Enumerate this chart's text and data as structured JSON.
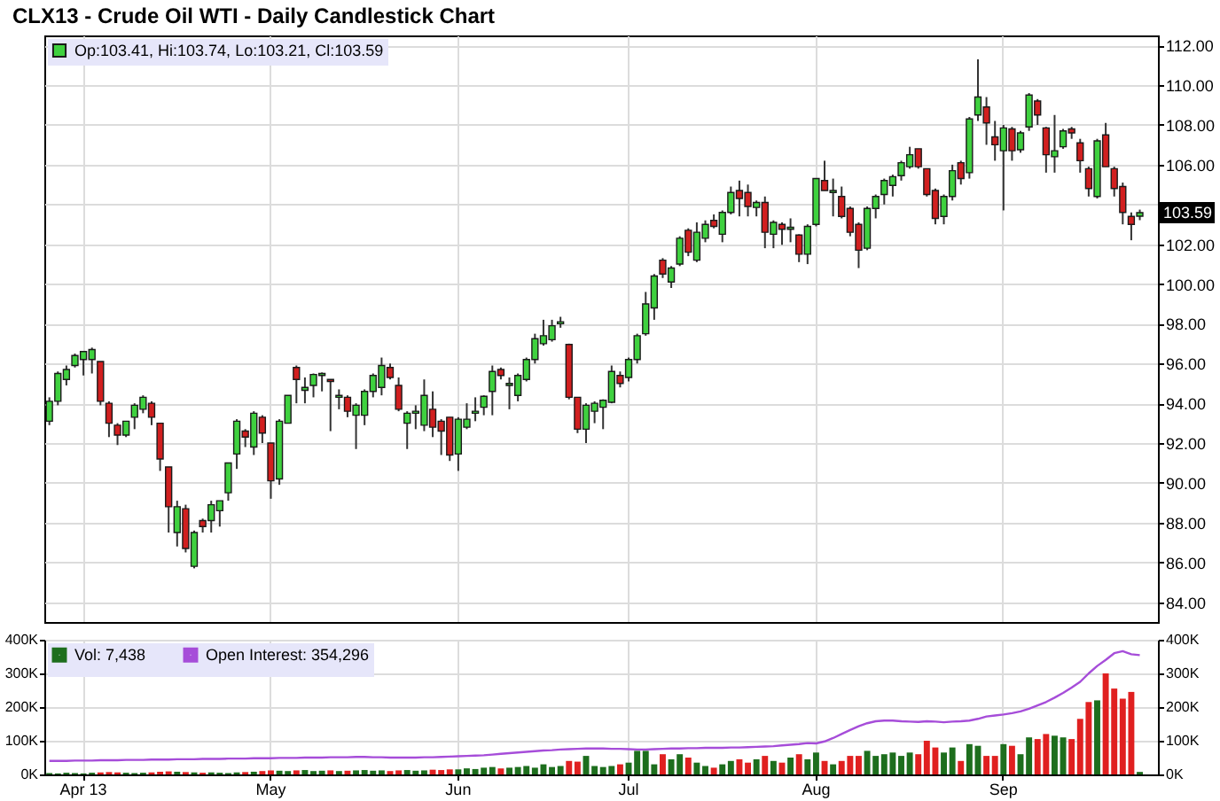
{
  "chart_data": [
    {
      "type": "candlestick",
      "title": "CLX13 - Crude Oil WTI - Daily Candlestick Chart",
      "categories": [
        null,
        null,
        null,
        null,
        null,
        null,
        null,
        null,
        null,
        null,
        null,
        null,
        null,
        null,
        null,
        null,
        null,
        null,
        null,
        null,
        null,
        null,
        null,
        null,
        null,
        null,
        null,
        null,
        null,
        null,
        null,
        null,
        null,
        null,
        null,
        null,
        null,
        null,
        null,
        null,
        null,
        null,
        null,
        null,
        null,
        null,
        null,
        null,
        null,
        null,
        null,
        null,
        null,
        null,
        null,
        null,
        null,
        null,
        null,
        null,
        null,
        null,
        null,
        null,
        null,
        null,
        null,
        null,
        null,
        null,
        null,
        null,
        null,
        null,
        null,
        null,
        null,
        null,
        null,
        null,
        null,
        null,
        null,
        null,
        null,
        null,
        null,
        null,
        null,
        null,
        null,
        null,
        null,
        null,
        null,
        null,
        null,
        null,
        null,
        null,
        null,
        null,
        null,
        null,
        null,
        null,
        null,
        null,
        null,
        null,
        null,
        null,
        null,
        null,
        null,
        null,
        null,
        null,
        null,
        null,
        null,
        null,
        null,
        null,
        null,
        null,
        null,
        null,
        null
      ],
      "series": [
        {
          "name": "Op:103.41, Hi:103.74, Lo:103.21, Cl:103.59",
          "color": "#3fd13f",
          "ohlc": [
            [
              93.1,
              94.3,
              92.9,
              94.1
            ],
            [
              94.1,
              95.6,
              93.9,
              95.5
            ],
            [
              95.2,
              95.9,
              94.9,
              95.7
            ],
            [
              95.9,
              96.5,
              95.8,
              96.4
            ],
            [
              96.2,
              96.6,
              95.4,
              96.6
            ],
            [
              96.2,
              96.8,
              95.5,
              96.7
            ],
            [
              96.1,
              96.1,
              93.9,
              94.1
            ],
            [
              94.0,
              94.1,
              92.3,
              93.0
            ],
            [
              92.9,
              93.0,
              91.9,
              92.4
            ],
            [
              92.4,
              93.1,
              92.3,
              93.1
            ],
            [
              93.3,
              94.0,
              92.7,
              93.9
            ],
            [
              93.7,
              94.4,
              93.5,
              94.3
            ],
            [
              94.0,
              94.1,
              92.9,
              93.3
            ],
            [
              93.0,
              93.0,
              90.6,
              91.2
            ],
            [
              90.8,
              90.8,
              87.5,
              88.8
            ],
            [
              87.5,
              89.1,
              86.8,
              88.8
            ],
            [
              88.7,
              88.9,
              86.5,
              86.7
            ],
            [
              85.8,
              87.6,
              85.7,
              87.5
            ],
            [
              88.1,
              88.2,
              87.5,
              87.8
            ],
            [
              88.1,
              89.1,
              87.5,
              88.9
            ],
            [
              88.6,
              89.1,
              87.8,
              89.1
            ],
            [
              89.5,
              91.0,
              89.1,
              91.0
            ],
            [
              91.45,
              93.2,
              90.7,
              93.1
            ],
            [
              92.6,
              92.7,
              91.8,
              92.3
            ],
            [
              91.8,
              93.6,
              91.4,
              93.5
            ],
            [
              93.3,
              93.4,
              92.0,
              92.5
            ],
            [
              92.0,
              92.0,
              89.2,
              90.1
            ],
            [
              90.2,
              93.2,
              89.9,
              93.1
            ],
            [
              93.0,
              94.4,
              93.0,
              94.4
            ],
            [
              95.8,
              95.9,
              94.0,
              95.2
            ],
            [
              94.65,
              95.3,
              94.0,
              94.8
            ],
            [
              94.9,
              95.5,
              94.3,
              95.45
            ],
            [
              95.4,
              95.55,
              94.6,
              95.5
            ],
            [
              95.2,
              95.2,
              92.6,
              95.1
            ],
            [
              94.3,
              94.7,
              93.7,
              94.4
            ],
            [
              94.3,
              94.4,
              93.3,
              93.6
            ],
            [
              93.4,
              94.0,
              91.7,
              93.9
            ],
            [
              93.4,
              94.7,
              92.9,
              94.6
            ],
            [
              94.6,
              95.5,
              94.3,
              95.4
            ],
            [
              94.8,
              96.3,
              94.4,
              95.9
            ],
            [
              95.8,
              96.0,
              95.2,
              95.3
            ],
            [
              94.9,
              95.3,
              93.6,
              93.7
            ],
            [
              93.0,
              93.6,
              91.7,
              93.5
            ],
            [
              93.5,
              93.9,
              92.7,
              93.6
            ],
            [
              92.9,
              95.2,
              92.6,
              94.4
            ],
            [
              93.7,
              94.6,
              92.3,
              92.8
            ],
            [
              93.1,
              93.2,
              91.4,
              92.6
            ],
            [
              93.3,
              93.3,
              91.1,
              91.4
            ],
            [
              91.45,
              93.3,
              90.6,
              93.2
            ],
            [
              92.8,
              94.0,
              92.7,
              93.2
            ],
            [
              93.5,
              94.3,
              93.1,
              93.6
            ],
            [
              93.8,
              94.4,
              93.4,
              94.35
            ],
            [
              94.6,
              95.9,
              93.4,
              95.6
            ],
            [
              95.7,
              95.8,
              95.2,
              95.4
            ],
            [
              94.9,
              95.3,
              93.7,
              95.0
            ],
            [
              94.4,
              95.5,
              94.1,
              95.4
            ],
            [
              95.2,
              96.3,
              95.1,
              96.2
            ],
            [
              96.2,
              97.5,
              96.0,
              97.25
            ],
            [
              97.0,
              98.2,
              96.9,
              97.4
            ],
            [
              97.2,
              98.2,
              97.1,
              97.9
            ],
            [
              98.0,
              98.35,
              97.8,
              98.1
            ],
            [
              96.96,
              97.0,
              94.2,
              94.3
            ],
            [
              94.3,
              94.3,
              92.5,
              92.7
            ],
            [
              92.7,
              94.0,
              92.0,
              93.9
            ],
            [
              93.6,
              94.1,
              93.0,
              94.0
            ],
            [
              93.8,
              94.2,
              92.7,
              94.15
            ],
            [
              94.05,
              95.9,
              94.0,
              95.6
            ],
            [
              95.4,
              95.6,
              94.8,
              95.0
            ],
            [
              95.3,
              96.3,
              95.1,
              96.2
            ],
            [
              96.2,
              97.5,
              96.0,
              97.4
            ],
            [
              97.5,
              99.6,
              97.4,
              99.0
            ],
            [
              98.8,
              100.5,
              98.2,
              100.4
            ],
            [
              101.2,
              101.3,
              100.3,
              100.5
            ],
            [
              100.1,
              100.9,
              99.8,
              100.8
            ],
            [
              101.0,
              102.4,
              100.9,
              102.3
            ],
            [
              102.7,
              102.8,
              101.4,
              101.6
            ],
            [
              101.2,
              103.1,
              101.1,
              102.6
            ],
            [
              102.3,
              103.2,
              102.1,
              103.0
            ],
            [
              103.2,
              103.5,
              102.8,
              102.9
            ],
            [
              102.5,
              103.7,
              102.1,
              103.6
            ],
            [
              103.6,
              104.9,
              103.5,
              104.6
            ],
            [
              104.7,
              105.2,
              103.4,
              104.3
            ],
            [
              104.6,
              105.0,
              103.4,
              103.9
            ],
            [
              103.85,
              104.2,
              103.4,
              104.1
            ],
            [
              104.1,
              104.4,
              101.8,
              102.6
            ],
            [
              102.5,
              103.2,
              101.8,
              103.1
            ],
            [
              103.0,
              103.1,
              101.97,
              102.75
            ],
            [
              102.75,
              103.3,
              102.1,
              102.85
            ],
            [
              102.46,
              102.5,
              101.1,
              101.5
            ],
            [
              101.5,
              103.0,
              101.0,
              102.9
            ],
            [
              103.0,
              105.3,
              102.9,
              105.3
            ],
            [
              105.2,
              106.2,
              104.7,
              104.7
            ],
            [
              104.6,
              105.3,
              103.4,
              104.7
            ],
            [
              104.4,
              104.9,
              103.3,
              103.4
            ],
            [
              103.8,
              103.9,
              102.4,
              102.6
            ],
            [
              103.0,
              103.1,
              100.8,
              101.7
            ],
            [
              101.8,
              103.9,
              101.7,
              103.8
            ],
            [
              103.8,
              104.5,
              103.3,
              104.4
            ],
            [
              104.5,
              105.3,
              104.0,
              105.2
            ],
            [
              104.96,
              105.5,
              104.4,
              105.4
            ],
            [
              105.45,
              106.2,
              105.2,
              106.1
            ],
            [
              105.9,
              106.9,
              105.8,
              106.5
            ],
            [
              106.8,
              106.8,
              105.8,
              105.9
            ],
            [
              105.8,
              105.8,
              104.4,
              104.5
            ],
            [
              104.7,
              104.8,
              103.0,
              103.3
            ],
            [
              103.4,
              104.5,
              103.0,
              104.4
            ],
            [
              104.4,
              106.0,
              104.2,
              105.7
            ],
            [
              106.1,
              106.2,
              105.0,
              105.3
            ],
            [
              105.6,
              108.4,
              105.3,
              108.3
            ],
            [
              108.5,
              111.3,
              108.2,
              109.4
            ],
            [
              108.9,
              109.4,
              107.0,
              108.1
            ],
            [
              107.4,
              108.2,
              106.2,
              107.0
            ],
            [
              106.7,
              108.0,
              103.7,
              107.85
            ],
            [
              107.8,
              107.9,
              106.2,
              106.7
            ],
            [
              106.75,
              107.7,
              106.6,
              107.6
            ],
            [
              107.9,
              109.6,
              107.7,
              109.5
            ],
            [
              109.2,
              109.3,
              108.0,
              108.5
            ],
            [
              107.85,
              107.9,
              105.6,
              106.5
            ],
            [
              106.4,
              108.5,
              105.6,
              106.7
            ],
            [
              106.9,
              107.8,
              106.8,
              107.7
            ],
            [
              107.8,
              107.9,
              107.3,
              107.6
            ],
            [
              107.1,
              107.3,
              105.6,
              106.2
            ],
            [
              105.8,
              105.9,
              104.4,
              104.8
            ],
            [
              104.4,
              107.3,
              104.3,
              107.2
            ],
            [
              107.5,
              108.1,
              105.9,
              105.9
            ],
            [
              105.8,
              105.9,
              104.4,
              104.8
            ],
            [
              104.9,
              105.1,
              103.0,
              103.6
            ],
            [
              103.4,
              103.6,
              102.2,
              103.0
            ],
            [
              103.41,
              103.74,
              103.21,
              103.59
            ]
          ],
          "colors": [
            "#3fd13f",
            "#3fd13f",
            "#3fd13f",
            "#3fd13f",
            "#3fd13f",
            "#3fd13f",
            "#d11f1f",
            "#d11f1f",
            "#d11f1f",
            "#3fd13f",
            "#3fd13f",
            "#3fd13f",
            "#d11f1f",
            "#d11f1f",
            "#d11f1f",
            "#3fd13f",
            "#d11f1f",
            "#3fd13f",
            "#d11f1f",
            "#3fd13f",
            "#3fd13f",
            "#3fd13f",
            "#3fd13f",
            "#d11f1f",
            "#3fd13f",
            "#d11f1f",
            "#d11f1f",
            "#3fd13f",
            "#3fd13f",
            "#d11f1f",
            "#3fd13f",
            "#3fd13f",
            "#3fd13f",
            "#d11f1f",
            "#3fd13f",
            "#d11f1f",
            "#3fd13f",
            "#3fd13f",
            "#3fd13f",
            "#3fd13f",
            "#d11f1f",
            "#d11f1f",
            "#3fd13f",
            "#3fd13f",
            "#3fd13f",
            "#d11f1f",
            "#d11f1f",
            "#d11f1f",
            "#3fd13f",
            "#3fd13f",
            "#3fd13f",
            "#3fd13f",
            "#3fd13f",
            "#d11f1f",
            "#3fd13f",
            "#3fd13f",
            "#3fd13f",
            "#3fd13f",
            "#3fd13f",
            "#3fd13f",
            "#3fd13f",
            "#d11f1f",
            "#d11f1f",
            "#3fd13f",
            "#3fd13f",
            "#3fd13f",
            "#3fd13f",
            "#d11f1f",
            "#3fd13f",
            "#3fd13f",
            "#3fd13f",
            "#3fd13f",
            "#d11f1f",
            "#3fd13f",
            "#3fd13f",
            "#d11f1f",
            "#3fd13f",
            "#3fd13f",
            "#d11f1f",
            "#3fd13f",
            "#3fd13f",
            "#d11f1f",
            "#d11f1f",
            "#3fd13f",
            "#d11f1f",
            "#3fd13f",
            "#d11f1f",
            "#3fd13f",
            "#d11f1f",
            "#3fd13f",
            "#3fd13f",
            "#d11f1f",
            "#3fd13f",
            "#d11f1f",
            "#d11f1f",
            "#d11f1f",
            "#3fd13f",
            "#3fd13f",
            "#3fd13f",
            "#3fd13f",
            "#3fd13f",
            "#3fd13f",
            "#d11f1f",
            "#d11f1f",
            "#d11f1f",
            "#3fd13f",
            "#3fd13f",
            "#d11f1f",
            "#3fd13f",
            "#3fd13f",
            "#d11f1f",
            "#d11f1f",
            "#3fd13f",
            "#d11f1f",
            "#3fd13f",
            "#3fd13f",
            "#d11f1f",
            "#d11f1f",
            "#3fd13f",
            "#3fd13f",
            "#d11f1f",
            "#d11f1f",
            "#d11f1f",
            "#3fd13f",
            "#d11f1f",
            "#d11f1f",
            "#d11f1f",
            "#d11f1f",
            "#3fd13f"
          ]
        }
      ],
      "ylim": [
        83,
        112.5
      ],
      "yticks": [
        {
          "value": 84,
          "label": "84.00"
        },
        {
          "value": 86,
          "label": "86.00"
        },
        {
          "value": 88,
          "label": "88.00"
        },
        {
          "value": 90,
          "label": "90.00"
        },
        {
          "value": 92,
          "label": "92.00"
        },
        {
          "value": 94,
          "label": "94.00"
        },
        {
          "value": 96,
          "label": "96.00"
        },
        {
          "value": 98,
          "label": "98.00"
        },
        {
          "value": 100,
          "label": "100.00"
        },
        {
          "value": 102,
          "label": "102.00"
        },
        {
          "value": 104,
          "label": null
        },
        {
          "value": 106,
          "label": "106.00"
        },
        {
          "value": 108,
          "label": "108.00"
        },
        {
          "value": 110,
          "label": "110.00"
        },
        {
          "value": 112,
          "label": "112.00"
        }
      ],
      "grid": true,
      "legend": "top left",
      "tick_labels": "y",
      "annotations": [
        {
          "text": "103.59",
          "y": 103.59
        }
      ]
    },
    {
      "type": "bar",
      "categories": [
        null,
        null,
        null,
        null,
        "Apr 13",
        null,
        null,
        null,
        null,
        null,
        null,
        null,
        null,
        null,
        null,
        null,
        null,
        null,
        null,
        null,
        null,
        null,
        null,
        null,
        null,
        null,
        "May",
        null,
        null,
        null,
        null,
        null,
        null,
        null,
        null,
        null,
        null,
        null,
        null,
        null,
        null,
        null,
        null,
        null,
        null,
        null,
        null,
        null,
        "Jun",
        null,
        null,
        null,
        null,
        null,
        null,
        null,
        null,
        null,
        null,
        null,
        null,
        null,
        null,
        null,
        null,
        null,
        null,
        null,
        "Jul",
        null,
        null,
        null,
        null,
        null,
        null,
        null,
        null,
        null,
        null,
        null,
        null,
        null,
        null,
        null,
        null,
        null,
        null,
        null,
        null,
        null,
        "Aug",
        null,
        null,
        null,
        null,
        null,
        null,
        null,
        null,
        null,
        null,
        null,
        null,
        null,
        null,
        null,
        null,
        null,
        null,
        null,
        null,
        null,
        "Sep",
        null,
        null,
        null,
        null,
        null,
        null,
        null,
        null,
        null,
        null,
        null,
        null,
        null,
        null,
        null,
        null
      ],
      "series": [
        {
          "name": "Vol: 7,438",
          "type": "bar",
          "color": "#1d6e1d",
          "values": [
            4,
            3,
            5,
            4,
            3,
            5,
            6,
            7,
            6,
            5,
            4,
            5,
            6,
            8,
            9,
            8,
            7,
            6,
            5,
            6,
            5,
            4,
            6,
            7,
            8,
            10,
            12,
            11,
            10,
            12,
            13,
            10,
            11,
            12,
            10,
            11,
            12,
            13,
            11,
            12,
            10,
            12,
            13,
            11,
            12,
            14,
            13,
            15,
            15,
            18,
            16,
            20,
            22,
            18,
            20,
            22,
            25,
            20,
            30,
            22,
            25,
            40,
            38,
            55,
            25,
            22,
            25,
            30,
            35,
            70,
            70,
            30,
            60,
            45,
            60,
            50,
            35,
            25,
            20,
            30,
            40,
            45,
            35,
            45,
            55,
            40,
            35,
            50,
            60,
            45,
            65,
            40,
            30,
            40,
            55,
            55,
            70,
            55,
            60,
            65,
            55,
            65,
            60,
            100,
            80,
            65,
            80,
            40,
            90,
            85,
            55,
            55,
            90,
            85,
            60,
            110,
            105,
            120,
            115,
            110,
            105,
            165,
            215,
            220,
            300,
            255,
            225,
            245,
            7.438
          ],
          "colors": [
            "#1d6e1d",
            "#1d6e1d",
            "#1d6e1d",
            "#1d6e1d",
            "#1d6e1d",
            "#1d6e1d",
            "#e02020",
            "#e02020",
            "#e02020",
            "#1d6e1d",
            "#1d6e1d",
            "#1d6e1d",
            "#e02020",
            "#e02020",
            "#e02020",
            "#1d6e1d",
            "#e02020",
            "#1d6e1d",
            "#e02020",
            "#1d6e1d",
            "#1d6e1d",
            "#1d6e1d",
            "#1d6e1d",
            "#e02020",
            "#1d6e1d",
            "#e02020",
            "#e02020",
            "#1d6e1d",
            "#1d6e1d",
            "#e02020",
            "#1d6e1d",
            "#1d6e1d",
            "#1d6e1d",
            "#e02020",
            "#1d6e1d",
            "#e02020",
            "#1d6e1d",
            "#1d6e1d",
            "#1d6e1d",
            "#1d6e1d",
            "#e02020",
            "#e02020",
            "#1d6e1d",
            "#1d6e1d",
            "#1d6e1d",
            "#e02020",
            "#e02020",
            "#e02020",
            "#1d6e1d",
            "#1d6e1d",
            "#1d6e1d",
            "#1d6e1d",
            "#1d6e1d",
            "#e02020",
            "#1d6e1d",
            "#1d6e1d",
            "#1d6e1d",
            "#1d6e1d",
            "#1d6e1d",
            "#1d6e1d",
            "#1d6e1d",
            "#e02020",
            "#e02020",
            "#1d6e1d",
            "#1d6e1d",
            "#1d6e1d",
            "#1d6e1d",
            "#e02020",
            "#1d6e1d",
            "#1d6e1d",
            "#1d6e1d",
            "#1d6e1d",
            "#e02020",
            "#1d6e1d",
            "#1d6e1d",
            "#e02020",
            "#1d6e1d",
            "#1d6e1d",
            "#e02020",
            "#1d6e1d",
            "#1d6e1d",
            "#e02020",
            "#e02020",
            "#1d6e1d",
            "#e02020",
            "#1d6e1d",
            "#e02020",
            "#1d6e1d",
            "#e02020",
            "#1d6e1d",
            "#1d6e1d",
            "#e02020",
            "#1d6e1d",
            "#e02020",
            "#e02020",
            "#e02020",
            "#1d6e1d",
            "#1d6e1d",
            "#1d6e1d",
            "#1d6e1d",
            "#1d6e1d",
            "#1d6e1d",
            "#e02020",
            "#e02020",
            "#e02020",
            "#1d6e1d",
            "#1d6e1d",
            "#e02020",
            "#1d6e1d",
            "#1d6e1d",
            "#e02020",
            "#e02020",
            "#1d6e1d",
            "#e02020",
            "#1d6e1d",
            "#1d6e1d",
            "#e02020",
            "#e02020",
            "#1d6e1d",
            "#1d6e1d",
            "#e02020",
            "#e02020",
            "#e02020",
            "#1d6e1d",
            "#e02020",
            "#e02020",
            "#e02020",
            "#e02020",
            "#1d6e1d"
          ]
        },
        {
          "name": "Open Interest: 354,296",
          "type": "line",
          "color": "#a64dd9",
          "values": [
            40,
            40,
            40,
            41,
            41,
            41,
            42,
            42,
            42,
            43,
            43,
            43,
            44,
            44,
            44,
            45,
            45,
            45,
            46,
            46,
            46,
            47,
            47,
            47,
            48,
            48,
            48,
            49,
            49,
            49,
            50,
            50,
            50,
            51,
            51,
            51,
            52,
            52,
            51,
            51,
            50,
            50,
            50,
            50,
            51,
            51,
            52,
            53,
            54,
            55,
            56,
            57,
            59,
            61,
            63,
            65,
            67,
            69,
            71,
            72,
            74,
            75,
            76,
            77,
            77,
            77,
            76,
            76,
            75,
            74,
            74,
            75,
            76,
            77,
            77,
            78,
            78,
            79,
            79,
            79,
            80,
            80,
            81,
            82,
            83,
            84,
            86,
            88,
            90,
            93,
            92,
            98,
            108,
            120,
            132,
            143,
            152,
            158,
            160,
            160,
            158,
            157,
            156,
            158,
            157,
            155,
            157,
            158,
            160,
            165,
            172,
            175,
            178,
            182,
            187,
            195,
            205,
            215,
            228,
            242,
            258,
            275,
            300,
            322,
            340,
            360,
            366,
            357,
            354.296
          ]
        }
      ],
      "ylim": [
        0,
        400
      ],
      "yticks": [
        {
          "value": 0,
          "label": "0K"
        },
        {
          "value": 100,
          "label": "100K"
        },
        {
          "value": 200,
          "label": "200K"
        },
        {
          "value": 300,
          "label": "300K"
        },
        {
          "value": 400,
          "label": "400K"
        }
      ],
      "y2lim": [
        0,
        400
      ],
      "y2ticks": [
        {
          "value": 0,
          "label": "0K"
        },
        {
          "value": 100,
          "label": "100K"
        },
        {
          "value": 200,
          "label": "200K"
        },
        {
          "value": 300,
          "label": "300K"
        },
        {
          "value": 400,
          "label": "400K"
        }
      ],
      "grid": true,
      "legend": "top left"
    }
  ]
}
